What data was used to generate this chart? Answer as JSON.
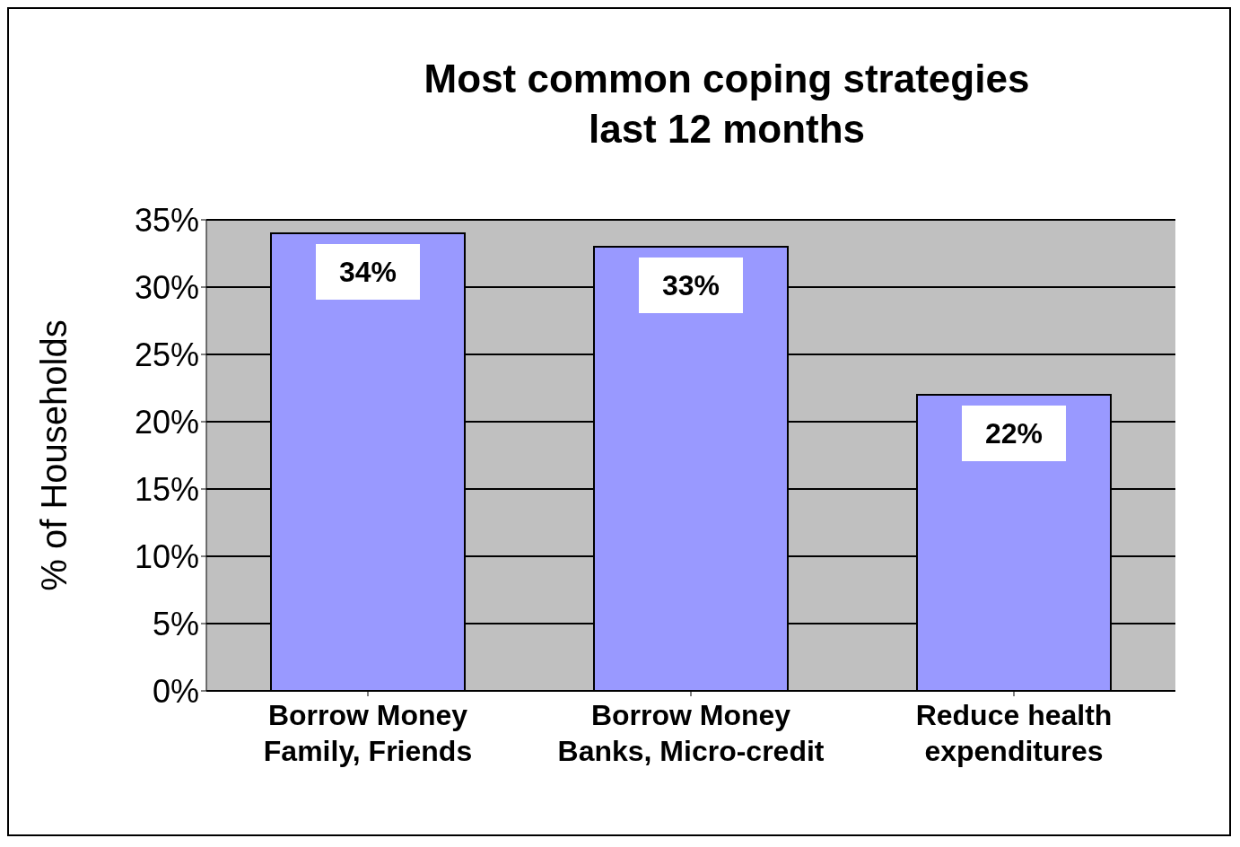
{
  "chart_data": {
    "type": "bar",
    "title": "Most common coping strategies\nlast 12 months",
    "ylabel": "% of Households",
    "categories": [
      "Borrow Money\nFamily, Friends",
      "Borrow Money\nBanks, Micro-credit",
      "Reduce health\nexpenditures"
    ],
    "values": [
      34,
      33,
      22
    ],
    "color": "#9999ff",
    "ylim": [
      0,
      35
    ],
    "yticks": [
      {
        "value": 0,
        "label": "0%"
      },
      {
        "value": 5,
        "label": "5%"
      },
      {
        "value": 10,
        "label": "10%"
      },
      {
        "value": 15,
        "label": "15%"
      },
      {
        "value": 20,
        "label": "20%"
      },
      {
        "value": 25,
        "label": "25%"
      },
      {
        "value": 30,
        "label": "30%"
      },
      {
        "value": 35,
        "label": "35%"
      }
    ],
    "value_labels": [
      "34%",
      "33%",
      "22%"
    ],
    "grid": "y",
    "legend": false
  }
}
